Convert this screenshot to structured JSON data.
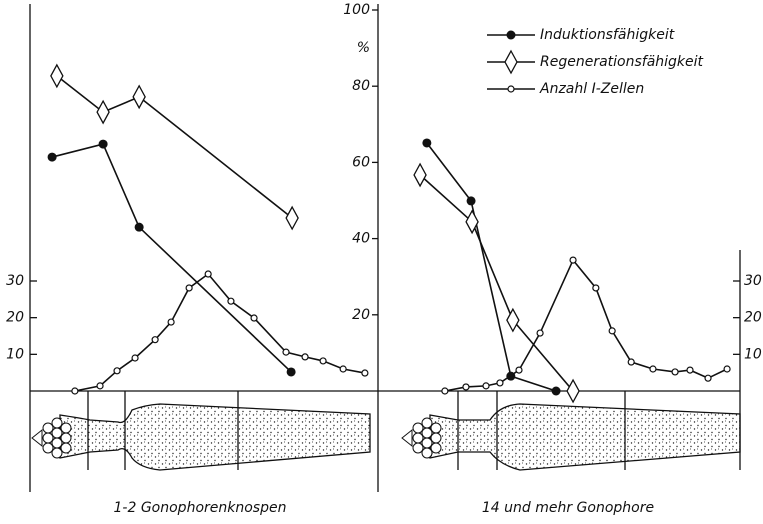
{
  "chart_data": {
    "type": "line",
    "y_label": "%",
    "ylim": [
      0,
      100
    ],
    "yticks": [
      20,
      40,
      60,
      80,
      100
    ],
    "y2lim": [
      0,
      30
    ],
    "y2ticks": [
      10,
      20,
      30
    ],
    "xlim": [
      0,
      100
    ],
    "series": [
      {
        "name": "Induktionsfähigkeit",
        "marker": "filled-circle",
        "color": "#111111"
      },
      {
        "name": "Regenerationsfähigkeit",
        "marker": "diamond",
        "color": "#111111"
      },
      {
        "name": "Anzahl I-Zellen",
        "marker": "open-circle",
        "color": "#111111",
        "axis": "y2"
      }
    ],
    "panels": [
      {
        "label": "1-2 Gonophorenknospen",
        "series": [
          {
            "x": [
              6.5,
              21.5,
              32.1,
              76.8
            ],
            "values": [
              61.4,
              64.8,
              43,
              5
            ]
          },
          {
            "x": [
              7.9,
              21.5,
              32.1,
              77.1
            ],
            "values": [
              82.7,
              73.2,
              77.2,
              45.4
            ]
          },
          {
            "x": [
              13.2,
              20.6,
              25.6,
              30.9,
              36.8,
              41.5,
              46.8,
              52.4,
              59.1,
              65.9,
              75.3,
              80.9,
              86.2,
              92.1,
              98.5
            ],
            "values": [
              0,
              1.4,
              5.5,
              9,
              14,
              18.8,
              28.1,
              31.9,
              24.5,
              19.9,
              10.6,
              9.3,
              8.2,
              6,
              4.9
            ]
          }
        ]
      },
      {
        "label": "14 und mehr Gonophore",
        "series": [
          {
            "x": [
              7.9,
              20.9,
              32.6,
              45.9
            ],
            "values": [
              65.1,
              49.9,
              3.9,
              0
            ]
          },
          {
            "x": [
              5.9,
              21.2,
              33.2,
              50.9
            ],
            "values": [
              56.7,
              44.4,
              18.6,
              0
            ]
          },
          {
            "x": [
              13.2,
              19.4,
              25.3,
              29.4,
              35,
              41.2,
              50.9,
              57.6,
              62.4,
              68,
              74.4,
              80.9,
              85.3,
              90.6,
              96.2
            ],
            "values": [
              0,
              1.1,
              1.4,
              2.2,
              5.7,
              15.8,
              35.7,
              28.1,
              16.4,
              7.9,
              6,
              5.2,
              5.7,
              3.5,
              6
            ]
          }
        ]
      }
    ]
  }
}
